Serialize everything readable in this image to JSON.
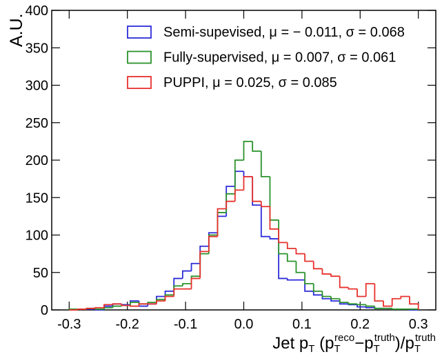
{
  "chart_data": {
    "type": "histogram",
    "y_label": "A.U.",
    "x_label": [
      "Jet p",
      "T",
      " (p",
      "T",
      "reco",
      "−p",
      "T",
      "truth",
      ")/p",
      "T",
      "truth"
    ],
    "bins": [
      -0.3,
      -0.285,
      -0.27,
      -0.255,
      -0.24,
      -0.225,
      -0.21,
      -0.195,
      -0.18,
      -0.165,
      -0.15,
      -0.135,
      -0.12,
      -0.105,
      -0.09,
      -0.075,
      -0.06,
      -0.045,
      -0.03,
      -0.015,
      0,
      0.015,
      0.03,
      0.045,
      0.06,
      0.075,
      0.09,
      0.105,
      0.12,
      0.135,
      0.15,
      0.165,
      0.18,
      0.195,
      0.21,
      0.225,
      0.24,
      0.255,
      0.27,
      0.285,
      0.3
    ],
    "series": [
      {
        "name": "Semi-supevised, μ = − 0.011, σ = 0.068",
        "color": "#2b2bd9",
        "values": [
          1,
          1,
          1,
          0,
          5,
          8,
          7,
          12,
          5,
          8,
          18,
          25,
          42,
          52,
          62,
          85,
          103,
          125,
          165,
          185,
          178,
          140,
          98,
          95,
          42,
          40,
          40,
          25,
          20,
          15,
          12,
          8,
          7,
          4,
          3,
          2,
          2,
          1,
          1,
          0
        ]
      },
      {
        "name": "Fully-supervised, μ = 0.007, σ = 0.061",
        "color": "#2a922a",
        "values": [
          1,
          1,
          2,
          1,
          3,
          5,
          6,
          10,
          8,
          10,
          14,
          20,
          32,
          35,
          45,
          75,
          100,
          130,
          155,
          200,
          225,
          212,
          178,
          120,
          75,
          65,
          50,
          35,
          25,
          18,
          15,
          10,
          8,
          7,
          5,
          2,
          2,
          1,
          1,
          1
        ]
      },
      {
        "name": "PUPPI, μ = 0.025, σ = 0.085",
        "color": "#e8302c",
        "values": [
          0,
          1,
          2,
          3,
          7,
          8,
          6,
          5,
          8,
          8,
          12,
          18,
          28,
          28,
          42,
          78,
          98,
          135,
          145,
          160,
          178,
          145,
          138,
          108,
          90,
          82,
          75,
          65,
          55,
          48,
          45,
          30,
          28,
          18,
          35,
          12,
          5,
          15,
          18,
          8
        ]
      }
    ],
    "xlim": [
      -0.33,
      0.33
    ],
    "xticks": [
      -0.3,
      -0.2,
      -0.1,
      {
        "value": 0,
        "label": "0.0"
      },
      0.1,
      0.2,
      0.3
    ],
    "ylim": [
      0,
      400
    ],
    "yticks": [
      0,
      50,
      100,
      150,
      200,
      250,
      300,
      350,
      400
    ]
  }
}
